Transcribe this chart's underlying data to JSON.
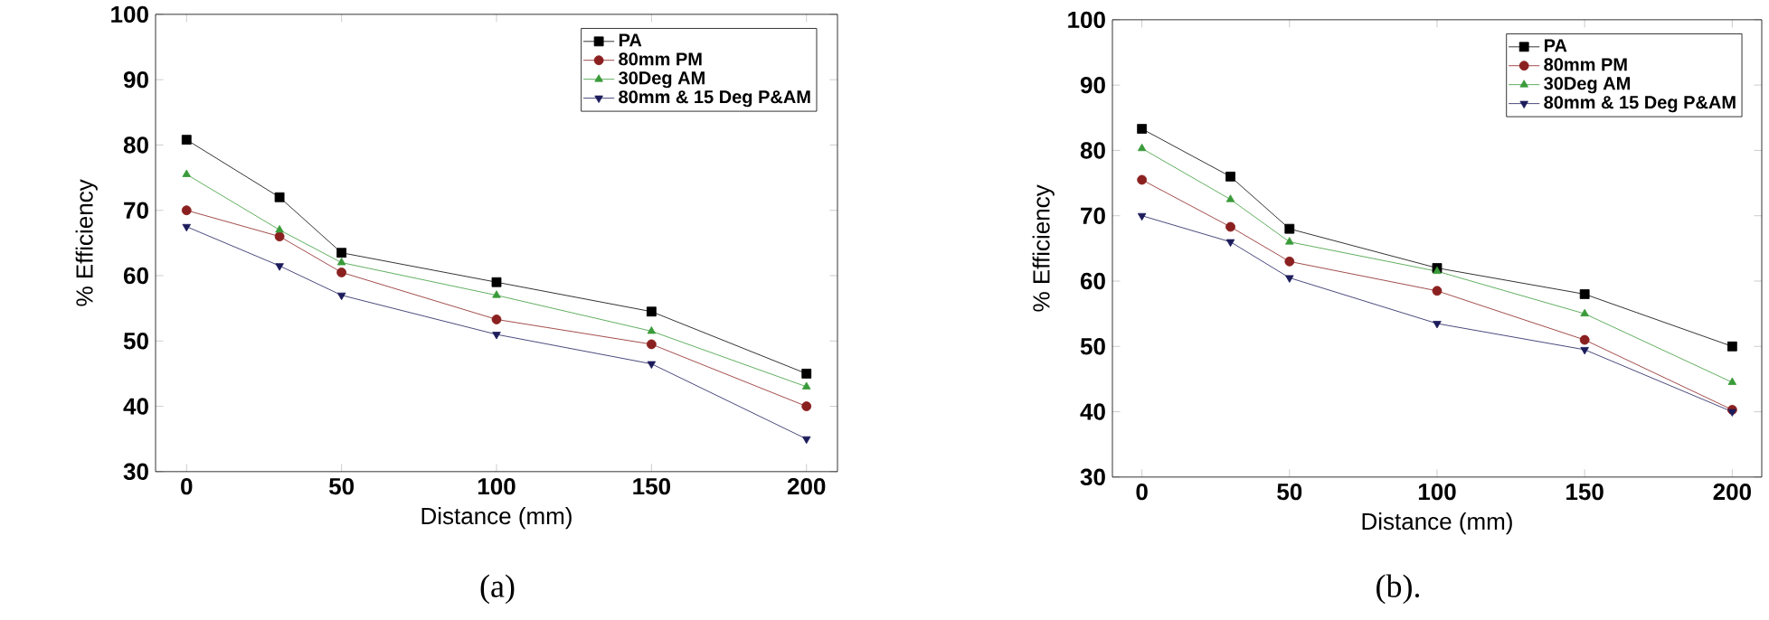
{
  "chart_data": [
    {
      "type": "line",
      "xlabel": "Distance (mm)",
      "ylabel": "% Efficiency",
      "x": [
        0,
        30,
        50,
        100,
        150,
        200
      ],
      "xlim": [
        -10,
        210
      ],
      "ylim": [
        30,
        100
      ],
      "xticks": [
        0,
        50,
        100,
        150,
        200
      ],
      "yticks": [
        30,
        40,
        50,
        60,
        70,
        80,
        90,
        100
      ],
      "legend": "top right",
      "grid": false,
      "line_style": "solid",
      "annotations": [
        "(a)"
      ],
      "series": [
        {
          "name": "PA",
          "color": "#000000",
          "marker": "square",
          "values": [
            80.8,
            72,
            63.5,
            59,
            54.5,
            45
          ]
        },
        {
          "name": "80mm PM",
          "color": "#8b2020",
          "marker": "circle",
          "values": [
            70,
            66,
            60.5,
            53.3,
            49.5,
            40
          ]
        },
        {
          "name": "30Deg AM",
          "color": "#3a9a3a",
          "marker": "triangle",
          "values": [
            75.5,
            67,
            62,
            57,
            51.5,
            43
          ]
        },
        {
          "name": "80mm & 15 Deg P&AM",
          "color": "#1c1c5c",
          "marker": "triangle-down",
          "values": [
            67.5,
            61.5,
            57,
            51,
            46.5,
            35
          ]
        }
      ]
    },
    {
      "type": "line",
      "xlabel": "Distance (mm)",
      "ylabel": "% Efficiency",
      "x": [
        0,
        30,
        50,
        100,
        150,
        200
      ],
      "xlim": [
        -10,
        210
      ],
      "ylim": [
        30,
        100
      ],
      "xticks": [
        0,
        50,
        100,
        150,
        200
      ],
      "yticks": [
        30,
        40,
        50,
        60,
        70,
        80,
        90,
        100
      ],
      "legend": "top right",
      "grid": false,
      "line_style": "solid",
      "annotations": [
        "(b)."
      ],
      "series": [
        {
          "name": "PA",
          "color": "#000000",
          "marker": "square",
          "values": [
            83.3,
            76,
            68,
            62,
            58,
            50
          ]
        },
        {
          "name": "80mm PM",
          "color": "#8b2020",
          "marker": "circle",
          "values": [
            75.5,
            68.3,
            63,
            58.5,
            51,
            40.3
          ]
        },
        {
          "name": "30Deg AM",
          "color": "#3a9a3a",
          "marker": "triangle",
          "values": [
            80.3,
            72.5,
            66,
            61.5,
            55,
            44.5
          ]
        },
        {
          "name": "80mm & 15 Deg P&AM",
          "color": "#1c1c5c",
          "marker": "triangle-down",
          "values": [
            70,
            66,
            60.5,
            53.5,
            49.5,
            40
          ]
        }
      ]
    }
  ]
}
